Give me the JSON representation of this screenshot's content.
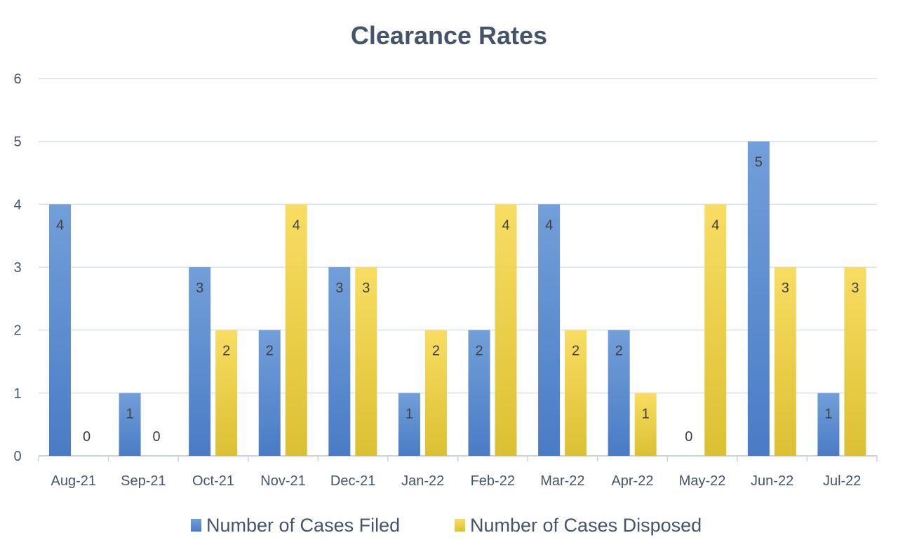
{
  "chart_data": {
    "type": "bar",
    "title": "Clearance Rates",
    "xlabel": "",
    "ylabel": "",
    "ylim": [
      0,
      6
    ],
    "yticks": [
      0,
      1,
      2,
      3,
      4,
      5,
      6
    ],
    "grid": true,
    "legend_position": "bottom",
    "data_labels": true,
    "categories": [
      "Aug-21",
      "Sep-21",
      "Oct-21",
      "Nov-21",
      "Dec-21",
      "Jan-22",
      "Feb-22",
      "Mar-22",
      "Apr-22",
      "May-22",
      "Jun-22",
      "Jul-22"
    ],
    "series": [
      {
        "name": "Number of Cases Filed",
        "color": "#5b8bd0",
        "values": [
          4,
          1,
          3,
          2,
          3,
          1,
          2,
          4,
          2,
          0,
          5,
          1
        ]
      },
      {
        "name": "Number of Cases Disposed",
        "color": "#f2d24a",
        "values": [
          0,
          0,
          2,
          4,
          3,
          2,
          4,
          2,
          1,
          4,
          3,
          3
        ]
      }
    ]
  }
}
